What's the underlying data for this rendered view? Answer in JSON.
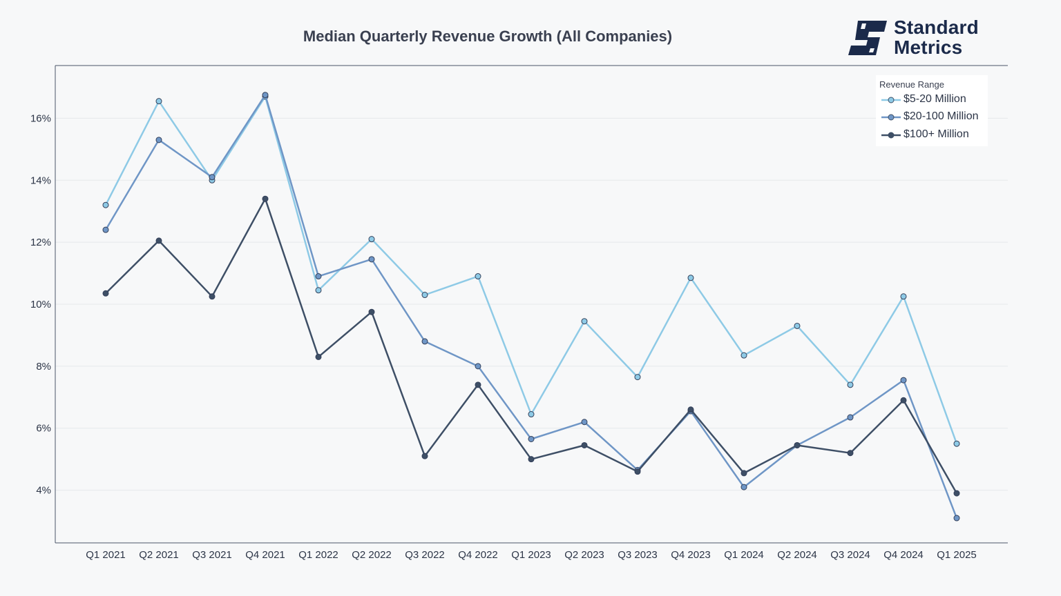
{
  "chart_data": {
    "type": "line",
    "title": "Median Quarterly Revenue Growth (All Companies)",
    "xlabel": "",
    "ylabel": "",
    "categories": [
      "Q1 2021",
      "Q2 2021",
      "Q3 2021",
      "Q4 2021",
      "Q1 2022",
      "Q2 2022",
      "Q3 2022",
      "Q4 2022",
      "Q1 2023",
      "Q2 2023",
      "Q3 2023",
      "Q4 2023",
      "Q1 2024",
      "Q2 2024",
      "Q3 2024",
      "Q4 2024",
      "Q1 2025"
    ],
    "ylim": [
      2.3,
      17.7
    ],
    "yticks": [
      4,
      6,
      8,
      10,
      12,
      14,
      16
    ],
    "ytick_labels": [
      "4%",
      "6%",
      "8%",
      "10%",
      "12%",
      "14%",
      "16%"
    ],
    "grid": true,
    "legend": {
      "title": "Revenue Range",
      "placement": "top-right"
    },
    "series": [
      {
        "name": "$5-20 Million",
        "color": "#8ecae6",
        "values": [
          13.2,
          16.55,
          14.0,
          16.7,
          10.45,
          12.1,
          10.3,
          10.9,
          6.45,
          9.45,
          7.65,
          10.85,
          8.35,
          9.3,
          7.4,
          10.25,
          5.5
        ]
      },
      {
        "name": "$20-100 Million",
        "color": "#6f96c6",
        "values": [
          12.4,
          15.3,
          14.1,
          16.75,
          10.9,
          11.45,
          8.8,
          8.0,
          5.65,
          6.2,
          4.65,
          6.55,
          4.1,
          5.45,
          6.35,
          7.55,
          3.1
        ]
      },
      {
        "name": "$100+ Million",
        "color": "#3e4f66",
        "values": [
          10.35,
          12.05,
          10.25,
          13.4,
          8.3,
          9.75,
          5.1,
          7.4,
          5.0,
          5.45,
          4.6,
          6.6,
          4.55,
          5.45,
          5.2,
          6.9,
          3.9
        ]
      }
    ]
  },
  "brand": {
    "line1": "Standard",
    "line2": "Metrics",
    "logo_icon": "standard-metrics-logo-icon",
    "color": "#1b2a4a"
  }
}
